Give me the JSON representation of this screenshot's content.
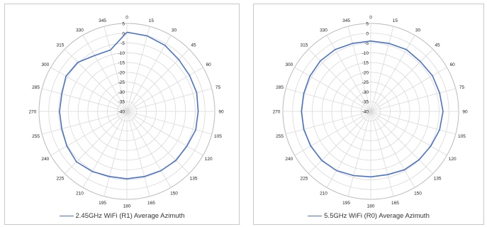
{
  "chart_data": [
    {
      "type": "polar",
      "angles": [
        0,
        15,
        30,
        45,
        60,
        75,
        90,
        105,
        120,
        135,
        150,
        165,
        180,
        195,
        210,
        225,
        240,
        255,
        270,
        285,
        300,
        315,
        330,
        345
      ],
      "angle_labels": [
        "0",
        "15",
        "30",
        "45",
        "60",
        "75",
        "90",
        "105",
        "120",
        "135",
        "150",
        "165",
        "180",
        "195",
        "210",
        "225",
        "240",
        "255",
        "270",
        "285",
        "300",
        "315",
        "330",
        "345"
      ],
      "rlim": [
        -40,
        5
      ],
      "radial_ticks": [
        5,
        0,
        -5,
        -10,
        -15,
        -20,
        -25,
        -30,
        -35,
        -40
      ],
      "radial_tick_labels": [
        "5",
        "0",
        "-5",
        "-10",
        "-15",
        "-20",
        "-25",
        "-30",
        "-35",
        "-40"
      ],
      "series": [
        {
          "name": "2.45GHz WiFi (R1) Average Azimuth",
          "color": "#4a72c8",
          "theta": [
            0,
            15,
            30,
            45,
            60,
            75,
            90,
            105,
            120,
            135,
            150,
            165,
            180,
            195,
            210,
            225,
            240,
            255,
            270,
            285,
            300,
            315,
            330,
            345,
            360
          ],
          "r": [
            0.5,
            0,
            -1,
            -2.5,
            -3,
            -3,
            -3.5,
            -3.5,
            -4.5,
            -4.5,
            -5,
            -5.5,
            -5.5,
            -5.5,
            -4.5,
            -3.5,
            -4.5,
            -5.5,
            -5.5,
            -5.5,
            -4,
            -4.5,
            -7,
            -7.5,
            0.5
          ]
        }
      ],
      "grid": true,
      "legend": "bottom"
    },
    {
      "type": "polar",
      "angles": [
        0,
        15,
        30,
        45,
        60,
        75,
        90,
        105,
        120,
        135,
        150,
        165,
        180,
        195,
        210,
        225,
        240,
        255,
        270,
        285,
        300,
        315,
        330,
        345
      ],
      "angle_labels": [
        "0",
        "15",
        "30",
        "45",
        "60",
        "75",
        "90",
        "105",
        "120",
        "135",
        "150",
        "165",
        "180",
        "195",
        "210",
        "225",
        "240",
        "255",
        "270",
        "285",
        "300",
        "315",
        "330",
        "345"
      ],
      "rlim": [
        -40,
        5
      ],
      "radial_ticks": [
        5,
        0,
        -5,
        -10,
        -15,
        -20,
        -25,
        -30,
        -35,
        -40
      ],
      "radial_tick_labels": [
        "5",
        "0",
        "-5",
        "-10",
        "-15",
        "-20",
        "-25",
        "-30",
        "-35",
        "-40"
      ],
      "series": [
        {
          "name": "5.5GHz WiFi (R0) Average Azimuth",
          "color": "#4a72c8",
          "theta": [
            0,
            15,
            30,
            45,
            60,
            75,
            90,
            105,
            120,
            135,
            150,
            165,
            180,
            195,
            210,
            225,
            240,
            255,
            270,
            285,
            300,
            315,
            330,
            345,
            360
          ],
          "r": [
            -4,
            -4,
            -3.5,
            -4,
            -3.5,
            -3.5,
            -3,
            -3.5,
            -4.5,
            -5,
            -5.5,
            -6.5,
            -6.5,
            -6,
            -5,
            -4.5,
            -4.5,
            -4.5,
            -4.5,
            -4.5,
            -4,
            -3.5,
            -3.5,
            -4,
            -4
          ]
        }
      ],
      "grid": true,
      "legend": "bottom"
    }
  ]
}
